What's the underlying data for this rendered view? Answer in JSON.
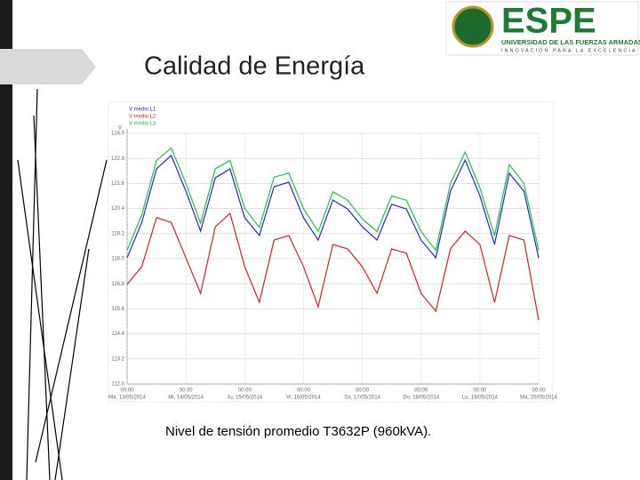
{
  "slide": {
    "title": "Calidad de Energía",
    "caption": "Nivel de tensión promedio T3632P (960kVA).",
    "logo": {
      "name": "ESPE",
      "line1": "UNIVERSIDAD DE LAS FUERZAS ARMADAS",
      "line2": "INNOVACIÓN PARA LA EXCELENCIA"
    }
  },
  "chart_data": {
    "type": "line",
    "ylabel": "V",
    "categories": [
      "Ma, 13/05/2014",
      null,
      null,
      null,
      "Mi, 14/05/2014",
      null,
      null,
      null,
      "Ju, 15/05/2014",
      null,
      null,
      null,
      "Vi, 16/05/2014",
      null,
      null,
      null,
      "Sa, 17/05/2014",
      null,
      null,
      null,
      "Do, 18/05/2014",
      null,
      null,
      null,
      "Lu, 19/05/2014",
      null,
      null,
      null,
      "Ma, 20/05/2014"
    ],
    "x_time_label": "00:00",
    "ylim": [
      112,
      124
    ],
    "yticks": [
      {
        "value": 124,
        "label": "124.0"
      },
      122.8,
      121.6,
      120.4,
      119.2,
      {
        "value": 118,
        "label": "118.0"
      },
      116.8,
      115.6,
      114.4,
      113.2,
      {
        "value": 112,
        "label": "112.0"
      }
    ],
    "grid": true,
    "series": [
      {
        "name": "V medio L1",
        "color": "#1f2fb0",
        "values": [
          118.04,
          119.74,
          122.3,
          122.94,
          121.23,
          119.32,
          121.87,
          122.3,
          119.96,
          119.11,
          121.45,
          121.66,
          119.96,
          118.89,
          120.81,
          120.38,
          119.53,
          118.89,
          120.6,
          120.38,
          118.89,
          118.04,
          121.23,
          122.72,
          121.02,
          118.68,
          122.09,
          121.23,
          118.04
        ]
      },
      {
        "name": "V medio L2",
        "color": "#d92020",
        "values": [
          116.77,
          117.62,
          119.96,
          119.74,
          118.04,
          116.34,
          119.53,
          120.17,
          117.62,
          115.91,
          118.89,
          119.11,
          117.62,
          115.7,
          118.68,
          118.47,
          117.62,
          116.34,
          118.47,
          118.26,
          116.34,
          115.49,
          118.47,
          119.32,
          118.68,
          115.91,
          119.11,
          118.89,
          115.06
        ]
      },
      {
        "name": "V medio L3",
        "color": "#22c04a",
        "values": [
          118.4,
          120.1,
          122.7,
          123.3,
          121.6,
          119.7,
          122.3,
          122.7,
          120.4,
          119.5,
          121.9,
          122.1,
          120.4,
          119.3,
          121.2,
          120.8,
          119.9,
          119.3,
          121.0,
          120.8,
          119.3,
          118.4,
          121.6,
          123.1,
          121.4,
          119.1,
          122.5,
          121.6,
          118.4
        ]
      }
    ]
  }
}
